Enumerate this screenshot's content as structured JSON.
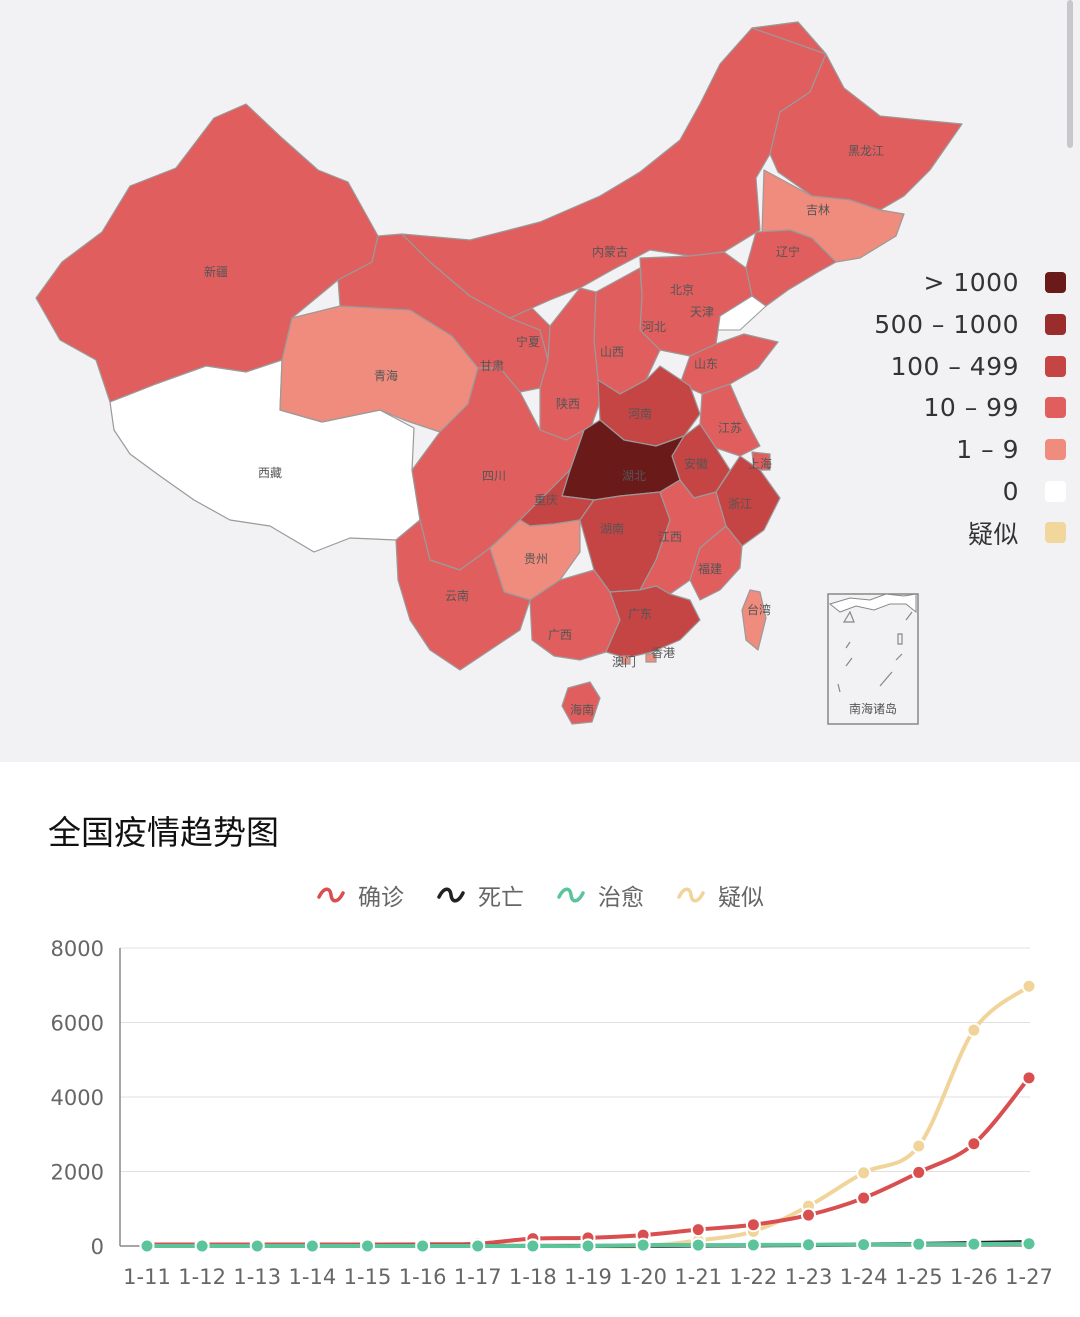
{
  "map": {
    "provinces": [
      {
        "name": "新疆",
        "level": "10-99"
      },
      {
        "name": "西藏",
        "level": "0"
      },
      {
        "name": "青海",
        "level": "1-9"
      },
      {
        "name": "甘肃",
        "level": "10-99"
      },
      {
        "name": "宁夏",
        "level": "10-99"
      },
      {
        "name": "内蒙古",
        "level": "10-99"
      },
      {
        "name": "黑龙江",
        "level": "10-99"
      },
      {
        "name": "吉林",
        "level": "1-9"
      },
      {
        "name": "辽宁",
        "level": "10-99"
      },
      {
        "name": "北京",
        "level": "10-99"
      },
      {
        "name": "天津",
        "level": "10-99"
      },
      {
        "name": "河北",
        "level": "10-99"
      },
      {
        "name": "山西",
        "level": "10-99"
      },
      {
        "name": "陕西",
        "level": "10-99"
      },
      {
        "name": "山东",
        "level": "10-99"
      },
      {
        "name": "河南",
        "level": "100-499"
      },
      {
        "name": "江苏",
        "level": "10-99"
      },
      {
        "name": "安徽",
        "level": "100-499"
      },
      {
        "name": "上海",
        "level": "10-99"
      },
      {
        "name": "浙江",
        "level": "100-499"
      },
      {
        "name": "湖北",
        "level": ">1000"
      },
      {
        "name": "四川",
        "level": "10-99"
      },
      {
        "name": "重庆",
        "level": "100-499"
      },
      {
        "name": "湖南",
        "level": "100-499"
      },
      {
        "name": "江西",
        "level": "10-99"
      },
      {
        "name": "福建",
        "level": "10-99"
      },
      {
        "name": "贵州",
        "level": "1-9"
      },
      {
        "name": "云南",
        "level": "10-99"
      },
      {
        "name": "广西",
        "level": "10-99"
      },
      {
        "name": "广东",
        "level": "100-499"
      },
      {
        "name": "台湾",
        "level": "1-9"
      },
      {
        "name": "香港",
        "level": "1-9"
      },
      {
        "name": "澳门",
        "level": "1-9"
      },
      {
        "name": "海南",
        "level": "10-99"
      }
    ],
    "inset_label": "南海诸岛",
    "legend": [
      {
        "label": "> 1000",
        "color": "#6b1a1a"
      },
      {
        "label": "500 – 1000",
        "color": "#9b2c2c"
      },
      {
        "label": "100 – 499",
        "color": "#c54444"
      },
      {
        "label": "10 – 99",
        "color": "#e15e5e"
      },
      {
        "label": "1 – 9",
        "color": "#ef8c7d"
      },
      {
        "label": "0",
        "color": "#ffffff"
      },
      {
        "label": "疑似",
        "color": "#f1d79c"
      }
    ]
  },
  "trend": {
    "title": "全国疫情趋势图",
    "legend_icon": "wave-line-icon",
    "chart_data": {
      "type": "line",
      "x": [
        "1-11",
        "1-12",
        "1-13",
        "1-14",
        "1-15",
        "1-16",
        "1-17",
        "1-18",
        "1-19",
        "1-20",
        "1-21",
        "1-22",
        "1-23",
        "1-24",
        "1-25",
        "1-26",
        "1-27"
      ],
      "ylim": [
        0,
        8000
      ],
      "yticks": [
        "0",
        "2000",
        "4000",
        "6000",
        "8000"
      ],
      "grid": true,
      "legend_position": "top-center",
      "series": [
        {
          "name": "确诊",
          "color": "#d94f4f",
          "values": [
            41,
            41,
            41,
            41,
            41,
            45,
            62,
            198,
            218,
            291,
            440,
            571,
            830,
            1287,
            1975,
            2744,
            4515
          ]
        },
        {
          "name": "死亡",
          "color": "#222222",
          "values": [
            1,
            1,
            1,
            1,
            2,
            2,
            2,
            3,
            3,
            6,
            9,
            17,
            25,
            41,
            56,
            80,
            106
          ]
        },
        {
          "name": "治愈",
          "color": "#5cc49a",
          "values": [
            0,
            0,
            0,
            0,
            0,
            0,
            0,
            0,
            0,
            25,
            25,
            28,
            34,
            38,
            49,
            51,
            60
          ]
        },
        {
          "name": "疑似",
          "color": "#f0d49a",
          "values": [
            null,
            null,
            null,
            null,
            null,
            null,
            null,
            null,
            0,
            0,
            149,
            393,
            1072,
            1965,
            2684,
            5794,
            6973
          ]
        }
      ]
    }
  }
}
